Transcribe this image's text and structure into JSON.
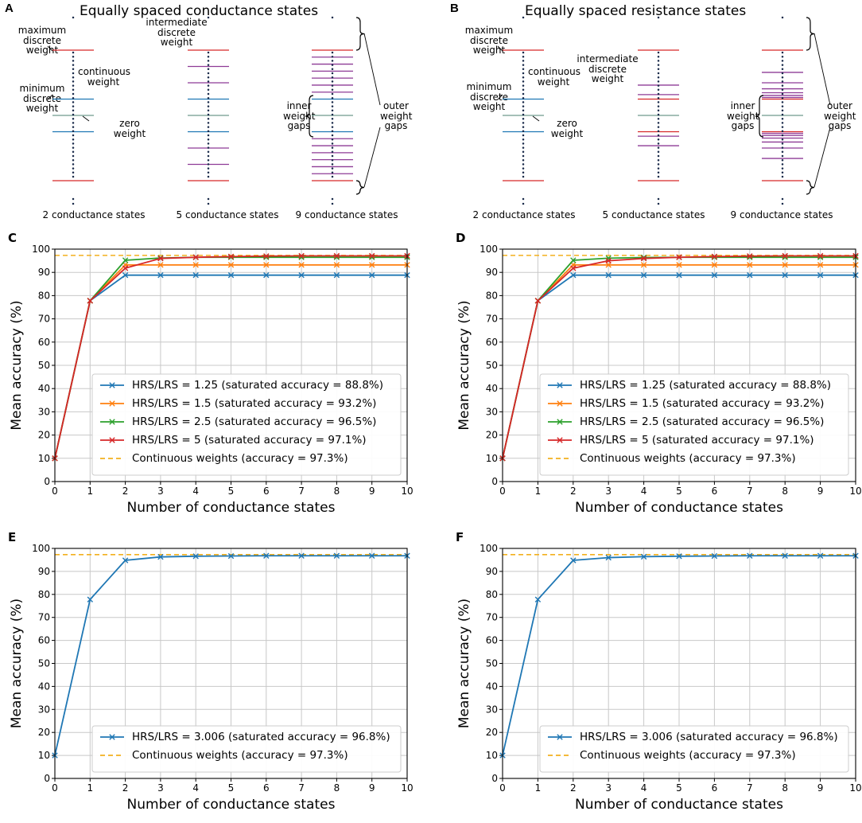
{
  "panels": {
    "A": {
      "label": "A",
      "title": "Equally spaced conductance states",
      "diagrams": [
        {
          "caption": "2 conductance states",
          "n": 2
        },
        {
          "caption": "5 conductance states",
          "n": 5
        },
        {
          "caption": "9 conductance states",
          "n": 9
        }
      ],
      "annotations": {
        "max": "maximum\ndiscrete\nweight",
        "cont": "continuous\nweight",
        "min": "minimum\ndiscrete\nweight",
        "zero": "zero\nweight",
        "inter": "intermediate\ndiscrete\nweight",
        "inner": "inner\nweight\ngaps",
        "outer": "outer\nweight\ngaps"
      }
    },
    "B": {
      "label": "B",
      "title": "Equally spaced resistance states",
      "diagrams": [
        {
          "caption": "2 conductance states",
          "n": 2
        },
        {
          "caption": "5 conductance states",
          "n": 5
        },
        {
          "caption": "9 conductance states",
          "n": 9
        }
      ],
      "annotations": {
        "max": "maximum\ndiscrete\nweight",
        "cont": "continuous\nweight",
        "min": "minimum\ndiscrete\nweight",
        "zero": "zero\nweight",
        "inter": "intermediate\ndiscrete\nweight",
        "inner": "inner\nweight\ngaps",
        "outer": "outer\nweight\ngaps"
      }
    }
  },
  "colors": {
    "red_line": "#d62728",
    "blue_line": "#1f77b4",
    "gray_line": "#6f9a8d",
    "purple_line": "#8e3b96",
    "dots": "#1a2a4a",
    "series_blue": "#1f77b4",
    "series_orange": "#ff7f0e",
    "series_green": "#2ca02c",
    "series_red": "#d62728",
    "dashed": "#f2b01e",
    "grid": "#c8c8c8"
  },
  "chart_data": [
    {
      "panel": "C",
      "type": "line",
      "xlabel": "Number of conductance states",
      "ylabel": "Mean accuracy (%)",
      "xlim": [
        0,
        10
      ],
      "ylim": [
        0,
        100
      ],
      "xticks": [
        0,
        1,
        2,
        3,
        4,
        5,
        6,
        7,
        8,
        9,
        10
      ],
      "yticks": [
        0,
        10,
        20,
        30,
        40,
        50,
        60,
        70,
        80,
        90,
        100
      ],
      "grid": true,
      "legend_position": "lower-right",
      "x": [
        0,
        1,
        2,
        3,
        4,
        5,
        6,
        7,
        8,
        9,
        10
      ],
      "series": [
        {
          "name": "HRS/LRS = 1.25 (saturated accuracy = 88.8%)",
          "color": "#1f77b4",
          "values": [
            10,
            77.8,
            88.8,
            88.8,
            88.8,
            88.8,
            88.8,
            88.8,
            88.8,
            88.8,
            88.8
          ]
        },
        {
          "name": "HRS/LRS = 1.5 (saturated accuracy = 93.2%)",
          "color": "#ff7f0e",
          "values": [
            10,
            77.8,
            93.2,
            93.2,
            93.2,
            93.2,
            93.2,
            93.2,
            93.2,
            93.2,
            93.2
          ]
        },
        {
          "name": "HRS/LRS = 2.5 (saturated accuracy = 96.5%)",
          "color": "#2ca02c",
          "values": [
            10,
            77.8,
            95.2,
            96.2,
            96.5,
            96.5,
            96.5,
            96.5,
            96.5,
            96.5,
            96.5
          ]
        },
        {
          "name": "HRS/LRS = 5 (saturated accuracy = 97.1%)",
          "color": "#d62728",
          "values": [
            10,
            77.8,
            91.8,
            96.0,
            96.5,
            96.8,
            97.0,
            97.1,
            97.1,
            97.1,
            97.1
          ]
        }
      ],
      "reference": {
        "name": "Continuous weights (accuracy = 97.3%)",
        "value": 97.3,
        "color": "#f2b01e"
      }
    },
    {
      "panel": "D",
      "type": "line",
      "xlabel": "Number of conductance states",
      "ylabel": "Mean accuracy (%)",
      "xlim": [
        0,
        10
      ],
      "ylim": [
        0,
        100
      ],
      "xticks": [
        0,
        1,
        2,
        3,
        4,
        5,
        6,
        7,
        8,
        9,
        10
      ],
      "yticks": [
        0,
        10,
        20,
        30,
        40,
        50,
        60,
        70,
        80,
        90,
        100
      ],
      "grid": true,
      "legend_position": "lower-right",
      "x": [
        0,
        1,
        2,
        3,
        4,
        5,
        6,
        7,
        8,
        9,
        10
      ],
      "series": [
        {
          "name": "HRS/LRS = 1.25 (saturated accuracy = 88.8%)",
          "color": "#1f77b4",
          "values": [
            10,
            77.8,
            88.8,
            88.8,
            88.8,
            88.8,
            88.8,
            88.8,
            88.8,
            88.8,
            88.8
          ]
        },
        {
          "name": "HRS/LRS = 1.5 (saturated accuracy = 93.2%)",
          "color": "#ff7f0e",
          "values": [
            10,
            77.8,
            93.2,
            93.2,
            93.2,
            93.2,
            93.2,
            93.2,
            93.2,
            93.2,
            93.2
          ]
        },
        {
          "name": "HRS/LRS = 2.5 (saturated accuracy = 96.5%)",
          "color": "#2ca02c",
          "values": [
            10,
            77.8,
            95.2,
            96.1,
            96.4,
            96.5,
            96.5,
            96.5,
            96.5,
            96.5,
            96.5
          ]
        },
        {
          "name": "HRS/LRS = 5 (saturated accuracy = 97.1%)",
          "color": "#d62728",
          "values": [
            10,
            77.8,
            91.8,
            95.0,
            96.0,
            96.5,
            96.8,
            97.0,
            97.1,
            97.1,
            97.1
          ]
        }
      ],
      "reference": {
        "name": "Continuous weights (accuracy = 97.3%)",
        "value": 97.3,
        "color": "#f2b01e"
      }
    },
    {
      "panel": "E",
      "type": "line",
      "xlabel": "Number of conductance states",
      "ylabel": "Mean accuracy (%)",
      "xlim": [
        0,
        10
      ],
      "ylim": [
        0,
        100
      ],
      "xticks": [
        0,
        1,
        2,
        3,
        4,
        5,
        6,
        7,
        8,
        9,
        10
      ],
      "yticks": [
        0,
        10,
        20,
        30,
        40,
        50,
        60,
        70,
        80,
        90,
        100
      ],
      "grid": true,
      "legend_position": "lower-right",
      "x": [
        0,
        1,
        2,
        3,
        4,
        5,
        6,
        7,
        8,
        9,
        10
      ],
      "series": [
        {
          "name": "HRS/LRS = 3.006 (saturated accuracy = 96.8%)",
          "color": "#1f77b4",
          "values": [
            10,
            77.8,
            94.8,
            96.3,
            96.6,
            96.7,
            96.8,
            96.8,
            96.8,
            96.8,
            96.8
          ]
        }
      ],
      "reference": {
        "name": "Continuous weights (accuracy = 97.3%)",
        "value": 97.3,
        "color": "#f2b01e"
      }
    },
    {
      "panel": "F",
      "type": "line",
      "xlabel": "Number of conductance states",
      "ylabel": "Mean accuracy (%)",
      "xlim": [
        0,
        10
      ],
      "ylim": [
        0,
        100
      ],
      "xticks": [
        0,
        1,
        2,
        3,
        4,
        5,
        6,
        7,
        8,
        9,
        10
      ],
      "yticks": [
        0,
        10,
        20,
        30,
        40,
        50,
        60,
        70,
        80,
        90,
        100
      ],
      "grid": true,
      "legend_position": "lower-right",
      "x": [
        0,
        1,
        2,
        3,
        4,
        5,
        6,
        7,
        8,
        9,
        10
      ],
      "series": [
        {
          "name": "HRS/LRS = 3.006 (saturated accuracy = 96.8%)",
          "color": "#1f77b4",
          "values": [
            10,
            77.8,
            94.8,
            96.0,
            96.4,
            96.6,
            96.7,
            96.8,
            96.8,
            96.8,
            96.8
          ]
        }
      ],
      "reference": {
        "name": "Continuous weights (accuracy = 97.3%)",
        "value": 97.3,
        "color": "#f2b01e"
      }
    }
  ]
}
